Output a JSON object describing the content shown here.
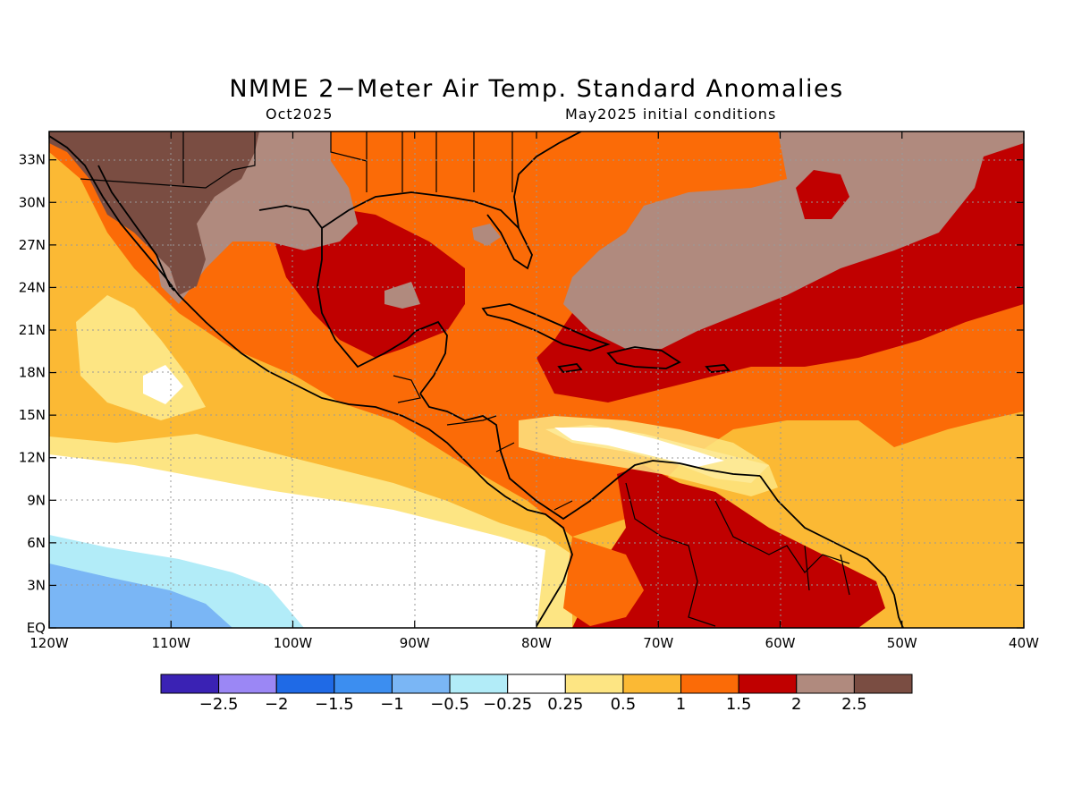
{
  "figure": {
    "title": "NMME 2−Meter Air Temp. Standard Anomalies",
    "subtitle_left": "Oct2025",
    "subtitle_right": "May2025 initial conditions"
  },
  "map": {
    "lon_range": [
      -120,
      -40
    ],
    "lat_range": [
      0,
      35
    ],
    "lat_ticks": [
      {
        "value": 33,
        "label": "33N"
      },
      {
        "value": 30,
        "label": "30N"
      },
      {
        "value": 27,
        "label": "27N"
      },
      {
        "value": 24,
        "label": "24N"
      },
      {
        "value": 21,
        "label": "21N"
      },
      {
        "value": 18,
        "label": "18N"
      },
      {
        "value": 15,
        "label": "15N"
      },
      {
        "value": 12,
        "label": "12N"
      },
      {
        "value": 9,
        "label": "9N"
      },
      {
        "value": 6,
        "label": "6N"
      },
      {
        "value": 3,
        "label": "3N"
      },
      {
        "value": 0,
        "label": "EQ"
      }
    ],
    "lon_ticks": [
      {
        "value": -120,
        "label": "120W"
      },
      {
        "value": -110,
        "label": "110W"
      },
      {
        "value": -100,
        "label": "100W"
      },
      {
        "value": -90,
        "label": "90W"
      },
      {
        "value": -80,
        "label": "80W"
      },
      {
        "value": -70,
        "label": "70W"
      },
      {
        "value": -60,
        "label": "60W"
      },
      {
        "value": -50,
        "label": "50W"
      },
      {
        "value": -40,
        "label": "40W"
      }
    ]
  },
  "colorbar": {
    "colors": [
      "#3a22b4",
      "#9b87f5",
      "#1f6ae6",
      "#3c8ef0",
      "#7ab6f5",
      "#b2ecf8",
      "#ffffff",
      "#fde583",
      "#fbb934",
      "#fb6b07",
      "#c00000",
      "#b08a7e",
      "#7a4d42"
    ],
    "labels": [
      "−2.5",
      "−2",
      "−1.5",
      "−1",
      "−0.5",
      "−0.25",
      "0.25",
      "0.5",
      "1",
      "1.5",
      "2",
      "2.5"
    ]
  },
  "colors": {
    "near_normal": "#ffffff",
    "warm_0_25": "#fde583",
    "warm_0_5": "#fbb934",
    "warm_1": "#fb6b07",
    "warm_1_5": "#c00000",
    "warm_2": "#b08a7e",
    "warm_2_5": "#7a4d42",
    "cool_0_25": "#b2ecf8",
    "cool_0_5": "#7ab6f5"
  }
}
